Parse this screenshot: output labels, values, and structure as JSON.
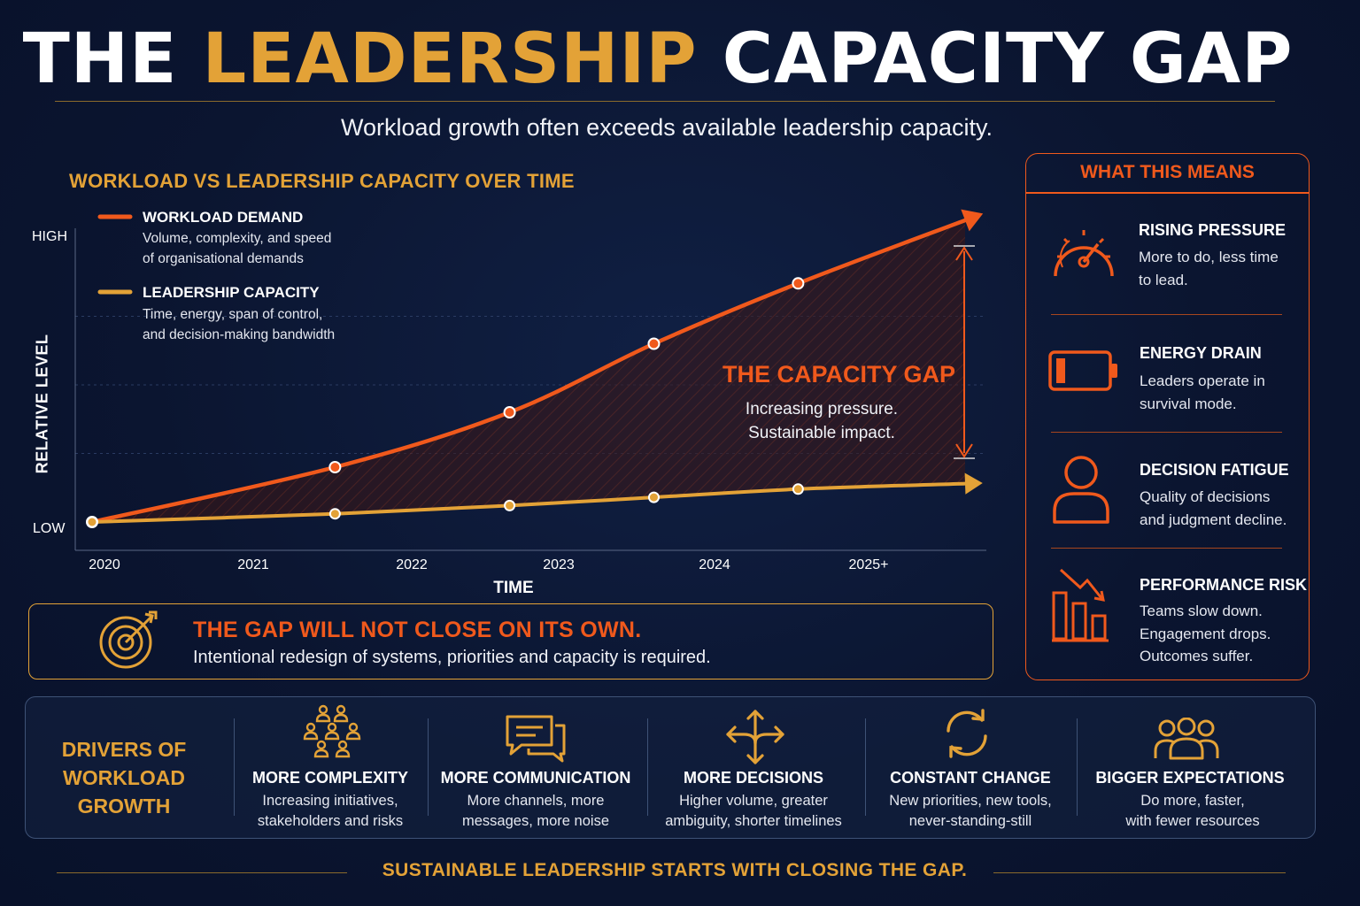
{
  "title": {
    "part1": "THE ",
    "accent": "LEADERSHIP",
    "part2": " CAPACITY GAP"
  },
  "subtitle": "Workload growth often exceeds available leadership capacity.",
  "colors": {
    "workload": "#f0591c",
    "capacity": "#e3a237",
    "background": "#0b1530",
    "text": "#ffffff"
  },
  "chart_data": {
    "type": "line",
    "title": "WORKLOAD VS LEADERSHIP CAPACITY OVER TIME",
    "xlabel": "TIME",
    "ylabel": "RELATIVE LEVEL",
    "y_tick_labels": [
      "HIGH",
      "LOW"
    ],
    "x": [
      "2020",
      "2021",
      "2022",
      "2023",
      "2024",
      "2025+"
    ],
    "ylim": [
      0,
      100
    ],
    "grid": true,
    "legend_position": "top-left",
    "series": [
      {
        "name": "WORKLOAD DEMAND",
        "description": [
          "Volume, complexity, and speed",
          "of organisational demands"
        ],
        "color": "#f0591c",
        "points": [
          [
            2020.0,
            0
          ],
          [
            2021.6,
            20
          ],
          [
            2022.75,
            40
          ],
          [
            2023.7,
            65
          ],
          [
            2024.65,
            87
          ],
          [
            2025.75,
            110
          ]
        ],
        "marked_points": 5
      },
      {
        "name": "LEADERSHIP CAPACITY",
        "description": [
          "Time, energy, span of control,",
          "and decision-making bandwidth"
        ],
        "color": "#e3a237",
        "points": [
          [
            2020.0,
            0
          ],
          [
            2021.6,
            3
          ],
          [
            2022.75,
            6
          ],
          [
            2023.7,
            9
          ],
          [
            2024.65,
            12
          ],
          [
            2025.75,
            14
          ]
        ],
        "marked_points": 5
      }
    ],
    "annotation": {
      "title": "THE CAPACITY GAP",
      "lines": [
        "Increasing pressure.",
        "Sustainable impact."
      ]
    }
  },
  "banner": {
    "title": "THE GAP WILL NOT CLOSE ON ITS OWN.",
    "text": "Intentional redesign of systems, priorities and capacity is required."
  },
  "panel": {
    "title": "WHAT THIS MEANS",
    "items": [
      {
        "icon": "speedometer-icon",
        "title": "RISING PRESSURE",
        "lines": [
          "More to do, less time",
          "to lead."
        ]
      },
      {
        "icon": "battery-low-icon",
        "title": "ENERGY DRAIN",
        "lines": [
          "Leaders operate in",
          "survival mode."
        ]
      },
      {
        "icon": "person-icon",
        "title": "DECISION FATIGUE",
        "lines": [
          "Quality of decisions",
          "and judgment decline."
        ]
      },
      {
        "icon": "declining-chart-icon",
        "title": "PERFORMANCE RISK",
        "lines": [
          "Teams slow down.",
          "Engagement drops.",
          "Outcomes suffer."
        ]
      }
    ]
  },
  "drivers": {
    "title_lines": [
      "DRIVERS OF",
      "WORKLOAD GROWTH"
    ],
    "items": [
      {
        "icon": "people-group-icon",
        "title": "MORE COMPLEXITY",
        "lines": [
          "Increasing initiatives,",
          "stakeholders and risks"
        ]
      },
      {
        "icon": "chat-bubbles-icon",
        "title": "MORE COMMUNICATION",
        "lines": [
          "More channels, more",
          "messages, more noise"
        ]
      },
      {
        "icon": "arrows-branch-icon",
        "title": "MORE DECISIONS",
        "lines": [
          "Higher volume, greater",
          "ambiguity, shorter timelines"
        ]
      },
      {
        "icon": "refresh-icon",
        "title": "CONSTANT CHANGE",
        "lines": [
          "New priorities, new tools,",
          "never-standing-still"
        ]
      },
      {
        "icon": "team-icon",
        "title": "BIGGER EXPECTATIONS",
        "lines": [
          "Do more, faster,",
          "with fewer resources"
        ]
      }
    ]
  },
  "footer": "SUSTAINABLE LEADERSHIP STARTS WITH CLOSING THE GAP."
}
